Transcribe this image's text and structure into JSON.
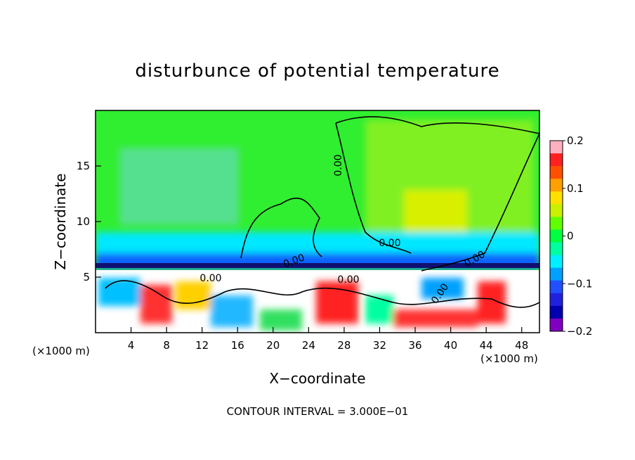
{
  "chart_data": {
    "type": "heatmap",
    "title": "disturbunce of potential temperature",
    "xlabel": "X−coordinate",
    "ylabel": "Z−coordinate",
    "x_unit_left": "(×1000 m)",
    "x_unit_right": "(×1000 m)",
    "contour_interval_text": "CONTOUR INTERVAL = 3.000E−01",
    "xlim": [
      0,
      50
    ],
    "ylim": [
      0,
      20
    ],
    "x_ticks": [
      4,
      8,
      12,
      16,
      20,
      24,
      28,
      32,
      36,
      40,
      44,
      48
    ],
    "y_ticks": [
      5,
      10,
      15
    ],
    "colorbar": {
      "range": [
        -0.2,
        0.2
      ],
      "tick_values": [
        0.2,
        0.1,
        0,
        -0.1,
        -0.2
      ],
      "tick_labels": [
        "0.2",
        "0.1",
        "0",
        "−0.1",
        "−0.2"
      ],
      "colors": [
        "#ffb0c0",
        "#ff2020",
        "#ff5000",
        "#ffa000",
        "#ffe000",
        "#c8f000",
        "#60ff00",
        "#00ff40",
        "#00ffa0",
        "#00f0ff",
        "#00a0ff",
        "#2050ff",
        "#2020e0",
        "#0000b0",
        "#8000c0"
      ]
    },
    "contour_labels": [
      "0.00",
      "0.00",
      "0.00",
      "0.00",
      "0.00",
      "0.00",
      "0.00"
    ],
    "regions": [
      {
        "name": "upper-left green",
        "x": [
          0,
          25
        ],
        "z": [
          6,
          20
        ],
        "value": 0.0
      },
      {
        "name": "upper-right warm",
        "x": [
          25,
          50
        ],
        "z": [
          6,
          20
        ],
        "value": 0.03
      },
      {
        "name": "cool band",
        "x": [
          0,
          50
        ],
        "z": [
          5.5,
          8
        ],
        "value": -0.08
      },
      {
        "name": "turbulent lower layer",
        "x": [
          0,
          50
        ],
        "z": [
          0,
          5.5
        ],
        "value": 0.15
      },
      {
        "name": "warm plume",
        "x": [
          34,
          43
        ],
        "z": [
          6,
          12
        ],
        "value": 0.07
      }
    ]
  }
}
